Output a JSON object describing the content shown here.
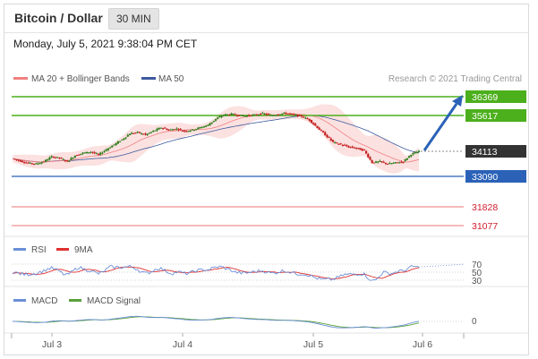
{
  "header": {
    "title": "Bitcoin / Dollar",
    "timeframe": "30 MIN"
  },
  "timestamp": "Monday, July 5, 2021 9:38:04 PM CET",
  "legend": {
    "ma_bb": "MA 20 + Bollinger Bands",
    "ma50": "MA 50",
    "credit": "Research © 2021 Trading Central",
    "rsi": "RSI",
    "rsi_ma": "9MA",
    "macd": "MACD",
    "macd_signal": "MACD Signal"
  },
  "colors": {
    "ma20": "#f08080",
    "ma50": "#3d5a9e",
    "bb_fill": "#fbdada",
    "resistance": "#4caf1c",
    "support": "#2b62b8",
    "target": "#e03040",
    "candle_up": "#2e7d1b",
    "candle_down": "#c42020",
    "arrow": "#2b62b8",
    "rsi": "#6b8fd8",
    "rsi_ma": "#e03030",
    "macd": "#6b8fd8",
    "macd_signal": "#5aa03a"
  },
  "chart_data": {
    "type": "candlestick",
    "price_levels": {
      "resistance": [
        36369,
        35617
      ],
      "current": 34113,
      "support": 33090,
      "targets": [
        31828,
        31077
      ]
    },
    "labels": {
      "r1": "36369",
      "r2": "35617",
      "current": "34113",
      "support": "33090",
      "t1": "31828",
      "t2": "31077"
    },
    "close_series": [
      33820,
      33720,
      33640,
      33600,
      33700,
      33900,
      33850,
      33700,
      33950,
      34050,
      34100,
      33980,
      34200,
      34400,
      34600,
      34850,
      34900,
      34800,
      34950,
      35100,
      35000,
      35050,
      34950,
      35000,
      35100,
      35200,
      35450,
      35620,
      35650,
      35600,
      35580,
      35620,
      35680,
      35600,
      35650,
      35700,
      35620,
      35560,
      35400,
      35100,
      34800,
      34500,
      34400,
      34300,
      34250,
      34150,
      33650,
      33700,
      33600,
      33650,
      33700,
      34000,
      34113
    ],
    "rsi": {
      "levels": [
        70,
        50,
        30
      ],
      "level_labels": [
        "70",
        "50",
        "30"
      ]
    },
    "macd": {
      "zero_label": "0"
    },
    "x_ticks": [
      "Jul 3",
      "Jul 4",
      "Jul 5",
      "Jul 6"
    ]
  }
}
